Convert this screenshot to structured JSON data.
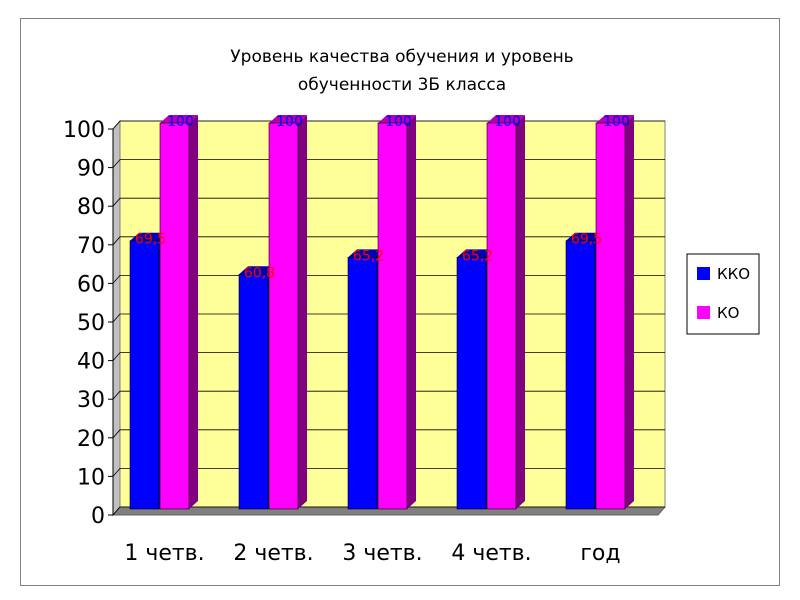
{
  "chart_data": {
    "type": "bar",
    "title_lines": [
      "Уровень качества обучения и уровень",
      "обученности 3Б класса"
    ],
    "categories": [
      "1 четв.",
      "2 четв.",
      "3 четв.",
      "4 четв.",
      "год"
    ],
    "series": [
      {
        "name": "ККО",
        "values": [
          69.5,
          60.8,
          65.2,
          65.2,
          69.5
        ],
        "labels": [
          "69,5",
          "60,8",
          "65,2",
          "65,2",
          "69,5"
        ],
        "color": "#0000ff",
        "label_color": "#ff0000"
      },
      {
        "name": "КО",
        "values": [
          100,
          100,
          100,
          100,
          100
        ],
        "labels": [
          "100",
          "100",
          "100",
          "100",
          "100"
        ],
        "color": "#ff00ff",
        "label_color": "#0000ff"
      }
    ],
    "ylim": [
      0,
      100
    ],
    "yticks": [
      "0",
      "10",
      "20",
      "30",
      "40",
      "50",
      "60",
      "70",
      "80",
      "90",
      "100"
    ],
    "grid": true,
    "legend_position": "right",
    "plot_background": "#ffff99",
    "side_wall_color": "#c0c0c0"
  }
}
